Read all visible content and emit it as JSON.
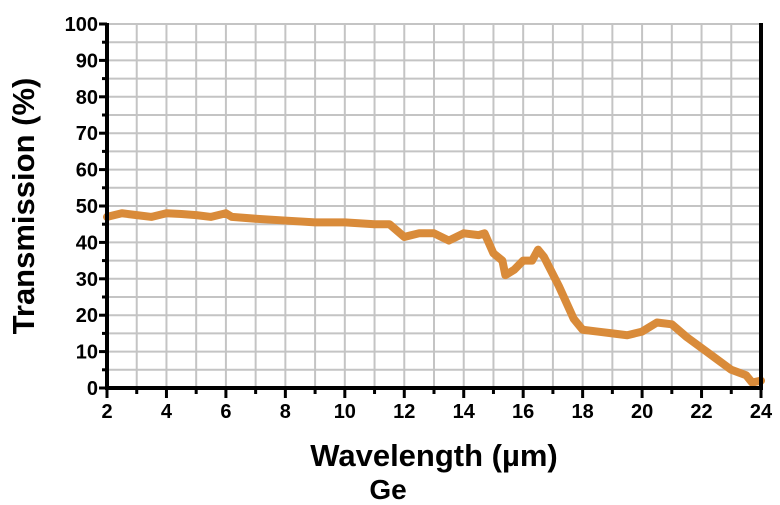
{
  "chart_data": {
    "type": "line",
    "title": "Ge",
    "xlabel": "Wavelength (µm)",
    "ylabel": "Transmission (%)",
    "xlim": [
      2,
      24
    ],
    "ylim": [
      0,
      100
    ],
    "xticks": [
      2,
      4,
      6,
      8,
      10,
      12,
      14,
      16,
      18,
      20,
      22,
      24
    ],
    "yticks": [
      0,
      10,
      20,
      30,
      40,
      50,
      60,
      70,
      80,
      90,
      100
    ],
    "grid": true,
    "series": [
      {
        "name": "Ge",
        "color": "#d98b3a",
        "x": [
          2.0,
          2.5,
          3.0,
          3.5,
          4.0,
          4.5,
          5.0,
          5.5,
          6.0,
          6.2,
          7.0,
          8.0,
          9.0,
          10.0,
          11.0,
          11.5,
          12.0,
          12.5,
          13.0,
          13.5,
          14.0,
          14.5,
          14.7,
          15.0,
          15.3,
          15.4,
          15.7,
          16.0,
          16.3,
          16.5,
          16.7,
          17.2,
          17.7,
          18.0,
          18.5,
          19.0,
          19.5,
          20.0,
          20.5,
          21.0,
          21.5,
          22.0,
          22.5,
          23.0,
          23.5,
          23.7,
          24.0
        ],
        "y": [
          47,
          48,
          47.5,
          47,
          48,
          47.8,
          47.5,
          47,
          48,
          47,
          46.5,
          46,
          45.5,
          45.5,
          45,
          45,
          41.5,
          42.5,
          42.5,
          40.5,
          42.5,
          42,
          42.5,
          37,
          35,
          31,
          32.5,
          35,
          35,
          38,
          36,
          28,
          19,
          16,
          15.5,
          15,
          14.5,
          15.5,
          18,
          17.5,
          14,
          11,
          8,
          5,
          3.5,
          1.5,
          2
        ]
      }
    ]
  }
}
